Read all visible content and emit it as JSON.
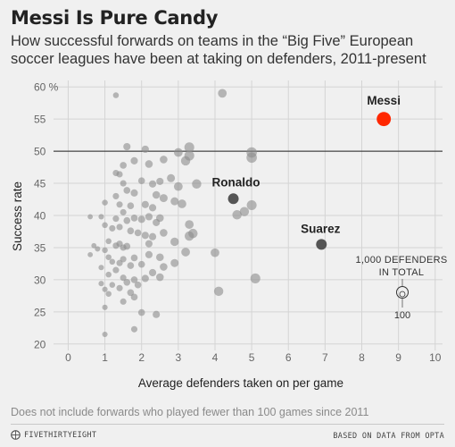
{
  "header": {
    "title": "Messi Is Pure Candy",
    "subtitle": "How successful forwards on teams in the “Big Five” European soccer leagues have been at taking on defenders, 2011-present"
  },
  "footer": {
    "note": "Does not include forwards who played fewer than 100 games since 2011",
    "brand": "FIVETHIRTYEIGHT",
    "source": "BASED ON DATA FROM OPTA"
  },
  "colors": {
    "background": "#f0f0f0",
    "point": "#8c8c8c",
    "highlight": "#555555",
    "messi": "#ff2700"
  },
  "chart_data": {
    "type": "scatter",
    "title": "Messi Is Pure Candy",
    "subtitle": "How successful forwards on teams in the “Big Five” European soccer leagues have been at taking on defenders, 2011-present",
    "xlabel": "Average defenders taken on per game",
    "ylabel": "Success rate",
    "xlim": [
      -0.4,
      10.2
    ],
    "ylim": [
      19,
      61
    ],
    "x_ticks": [
      0,
      1,
      2,
      3,
      4,
      5,
      6,
      7,
      8,
      9,
      10
    ],
    "y_ticks": [
      20,
      25,
      30,
      35,
      40,
      45,
      50,
      55,
      60
    ],
    "y_tick_labels": [
      "20",
      "25",
      "30",
      "35",
      "40",
      "45",
      "50",
      "55",
      "60 %"
    ],
    "grid": true,
    "reference_line_y": 50,
    "size_legend": {
      "label_line1": "1,000 DEFENDERS",
      "label_line2": "IN TOTAL",
      "small_label": "100"
    },
    "highlighted": [
      {
        "label": "Messi",
        "x": 8.6,
        "y": 55.0,
        "defenders": 2900,
        "color": "#ff2700"
      },
      {
        "label": "Ronaldo",
        "x": 4.5,
        "y": 42.6,
        "defenders": 1500,
        "color": "#555555"
      },
      {
        "label": "Suarez",
        "x": 6.9,
        "y": 35.5,
        "defenders": 1500,
        "color": "#555555"
      }
    ],
    "points": [
      {
        "x": 1.3,
        "y": 58.7,
        "d": 150
      },
      {
        "x": 4.2,
        "y": 59.0,
        "d": 500
      },
      {
        "x": 1.6,
        "y": 50.7,
        "d": 300
      },
      {
        "x": 1.8,
        "y": 48.5,
        "d": 300
      },
      {
        "x": 1.5,
        "y": 47.8,
        "d": 250
      },
      {
        "x": 1.3,
        "y": 46.6,
        "d": 200
      },
      {
        "x": 1.4,
        "y": 46.4,
        "d": 200
      },
      {
        "x": 2.1,
        "y": 50.3,
        "d": 300
      },
      {
        "x": 2.2,
        "y": 48.0,
        "d": 350
      },
      {
        "x": 2.6,
        "y": 48.7,
        "d": 350
      },
      {
        "x": 3.2,
        "y": 48.5,
        "d": 600
      },
      {
        "x": 3.3,
        "y": 49.3,
        "d": 700
      },
      {
        "x": 3.0,
        "y": 49.8,
        "d": 500
      },
      {
        "x": 3.3,
        "y": 50.6,
        "d": 700
      },
      {
        "x": 5.0,
        "y": 49.8,
        "d": 800
      },
      {
        "x": 5.0,
        "y": 49.0,
        "d": 800
      },
      {
        "x": 1.5,
        "y": 45.0,
        "d": 200
      },
      {
        "x": 1.6,
        "y": 43.9,
        "d": 250
      },
      {
        "x": 2.0,
        "y": 45.4,
        "d": 250
      },
      {
        "x": 2.3,
        "y": 44.9,
        "d": 300
      },
      {
        "x": 2.5,
        "y": 45.3,
        "d": 300
      },
      {
        "x": 2.8,
        "y": 45.8,
        "d": 400
      },
      {
        "x": 3.0,
        "y": 44.5,
        "d": 500
      },
      {
        "x": 3.5,
        "y": 44.9,
        "d": 600
      },
      {
        "x": 1.3,
        "y": 43.0,
        "d": 200
      },
      {
        "x": 1.8,
        "y": 43.5,
        "d": 300
      },
      {
        "x": 2.4,
        "y": 43.2,
        "d": 350
      },
      {
        "x": 2.6,
        "y": 42.7,
        "d": 400
      },
      {
        "x": 2.9,
        "y": 42.2,
        "d": 400
      },
      {
        "x": 3.1,
        "y": 41.8,
        "d": 500
      },
      {
        "x": 1.0,
        "y": 42.0,
        "d": 150
      },
      {
        "x": 1.4,
        "y": 41.7,
        "d": 200
      },
      {
        "x": 1.7,
        "y": 41.5,
        "d": 250
      },
      {
        "x": 2.1,
        "y": 41.7,
        "d": 300
      },
      {
        "x": 2.3,
        "y": 41.2,
        "d": 300
      },
      {
        "x": 0.6,
        "y": 39.8,
        "d": 100
      },
      {
        "x": 0.9,
        "y": 39.8,
        "d": 120
      },
      {
        "x": 1.3,
        "y": 39.5,
        "d": 200
      },
      {
        "x": 1.5,
        "y": 40.5,
        "d": 200
      },
      {
        "x": 1.6,
        "y": 39.2,
        "d": 250
      },
      {
        "x": 1.8,
        "y": 39.6,
        "d": 250
      },
      {
        "x": 2.0,
        "y": 39.4,
        "d": 300
      },
      {
        "x": 2.2,
        "y": 39.8,
        "d": 300
      },
      {
        "x": 2.5,
        "y": 39.6,
        "d": 350
      },
      {
        "x": 2.4,
        "y": 38.9,
        "d": 300
      },
      {
        "x": 3.3,
        "y": 38.6,
        "d": 500
      },
      {
        "x": 1.0,
        "y": 38.5,
        "d": 150
      },
      {
        "x": 1.2,
        "y": 38.0,
        "d": 200
      },
      {
        "x": 1.4,
        "y": 38.2,
        "d": 200
      },
      {
        "x": 1.7,
        "y": 37.6,
        "d": 250
      },
      {
        "x": 1.9,
        "y": 37.3,
        "d": 250
      },
      {
        "x": 2.1,
        "y": 36.9,
        "d": 300
      },
      {
        "x": 2.3,
        "y": 36.7,
        "d": 300
      },
      {
        "x": 2.6,
        "y": 37.3,
        "d": 350
      },
      {
        "x": 3.3,
        "y": 36.8,
        "d": 600
      },
      {
        "x": 3.4,
        "y": 37.2,
        "d": 600
      },
      {
        "x": 1.1,
        "y": 36.0,
        "d": 150
      },
      {
        "x": 1.4,
        "y": 35.6,
        "d": 200
      },
      {
        "x": 1.6,
        "y": 35.2,
        "d": 250
      },
      {
        "x": 2.2,
        "y": 35.6,
        "d": 300
      },
      {
        "x": 2.9,
        "y": 35.9,
        "d": 450
      },
      {
        "x": 0.7,
        "y": 35.3,
        "d": 100
      },
      {
        "x": 0.8,
        "y": 34.8,
        "d": 120
      },
      {
        "x": 1.0,
        "y": 34.6,
        "d": 150
      },
      {
        "x": 1.3,
        "y": 35.3,
        "d": 200
      },
      {
        "x": 1.5,
        "y": 35.0,
        "d": 200
      },
      {
        "x": 0.6,
        "y": 33.9,
        "d": 100
      },
      {
        "x": 1.1,
        "y": 33.5,
        "d": 150
      },
      {
        "x": 1.5,
        "y": 33.2,
        "d": 200
      },
      {
        "x": 1.8,
        "y": 33.4,
        "d": 250
      },
      {
        "x": 2.2,
        "y": 33.9,
        "d": 300
      },
      {
        "x": 2.5,
        "y": 33.5,
        "d": 350
      },
      {
        "x": 3.2,
        "y": 34.3,
        "d": 500
      },
      {
        "x": 4.0,
        "y": 34.2,
        "d": 500
      },
      {
        "x": 1.2,
        "y": 32.8,
        "d": 150
      },
      {
        "x": 1.4,
        "y": 32.6,
        "d": 200
      },
      {
        "x": 1.7,
        "y": 32.2,
        "d": 250
      },
      {
        "x": 2.0,
        "y": 32.4,
        "d": 250
      },
      {
        "x": 2.6,
        "y": 32.0,
        "d": 350
      },
      {
        "x": 2.9,
        "y": 32.6,
        "d": 400
      },
      {
        "x": 0.9,
        "y": 31.9,
        "d": 120
      },
      {
        "x": 1.3,
        "y": 31.5,
        "d": 200
      },
      {
        "x": 2.3,
        "y": 31.1,
        "d": 300
      },
      {
        "x": 2.5,
        "y": 30.4,
        "d": 350
      },
      {
        "x": 1.1,
        "y": 30.8,
        "d": 150
      },
      {
        "x": 1.5,
        "y": 30.3,
        "d": 200
      },
      {
        "x": 1.8,
        "y": 30.0,
        "d": 250
      },
      {
        "x": 2.1,
        "y": 30.2,
        "d": 300
      },
      {
        "x": 5.1,
        "y": 30.2,
        "d": 700
      },
      {
        "x": 0.9,
        "y": 29.4,
        "d": 120
      },
      {
        "x": 1.2,
        "y": 29.2,
        "d": 150
      },
      {
        "x": 1.6,
        "y": 29.6,
        "d": 250
      },
      {
        "x": 1.9,
        "y": 29.2,
        "d": 250
      },
      {
        "x": 1.0,
        "y": 28.5,
        "d": 120
      },
      {
        "x": 1.4,
        "y": 28.7,
        "d": 200
      },
      {
        "x": 1.7,
        "y": 28.0,
        "d": 250
      },
      {
        "x": 4.1,
        "y": 28.2,
        "d": 600
      },
      {
        "x": 1.1,
        "y": 27.8,
        "d": 150
      },
      {
        "x": 1.8,
        "y": 27.3,
        "d": 250
      },
      {
        "x": 1.5,
        "y": 26.6,
        "d": 200
      },
      {
        "x": 1.0,
        "y": 25.7,
        "d": 120
      },
      {
        "x": 2.0,
        "y": 24.9,
        "d": 250
      },
      {
        "x": 2.4,
        "y": 24.6,
        "d": 300
      },
      {
        "x": 1.8,
        "y": 22.3,
        "d": 200
      },
      {
        "x": 1.0,
        "y": 21.5,
        "d": 120
      },
      {
        "x": 4.6,
        "y": 40.1,
        "d": 600
      },
      {
        "x": 4.8,
        "y": 40.6,
        "d": 600
      },
      {
        "x": 5.0,
        "y": 41.6,
        "d": 700
      }
    ]
  }
}
